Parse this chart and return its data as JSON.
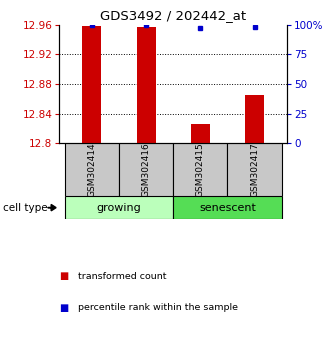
{
  "title": "GDS3492 / 202442_at",
  "samples": [
    "GSM302414",
    "GSM302416",
    "GSM302415",
    "GSM302417"
  ],
  "red_values": [
    12.958,
    12.957,
    12.826,
    12.865
  ],
  "blue_values": [
    99.5,
    99.5,
    97.5,
    98.5
  ],
  "ymin": 12.8,
  "ymax": 12.96,
  "y2min": 0,
  "y2max": 100,
  "yticks": [
    12.8,
    12.84,
    12.88,
    12.92,
    12.96
  ],
  "ytick_labels": [
    "12.8",
    "12.84",
    "12.88",
    "12.92",
    "12.96"
  ],
  "y2ticks": [
    0,
    25,
    50,
    75,
    100
  ],
  "y2tick_labels": [
    "0",
    "25",
    "50",
    "75",
    "100%"
  ],
  "groups": [
    {
      "name": "growing",
      "indices": [
        0,
        1
      ],
      "color": "#bbffbb"
    },
    {
      "name": "senescent",
      "indices": [
        2,
        3
      ],
      "color": "#55dd55"
    }
  ],
  "bar_color": "#cc0000",
  "dot_color": "#0000cc",
  "bar_width": 0.35,
  "group_label": "cell type",
  "legend_red": "transformed count",
  "legend_blue": "percentile rank within the sample",
  "axis_color_left": "#cc0000",
  "axis_color_right": "#0000cc",
  "bg_sample_box": "#c8c8c8",
  "bg_plot": "#ffffff"
}
